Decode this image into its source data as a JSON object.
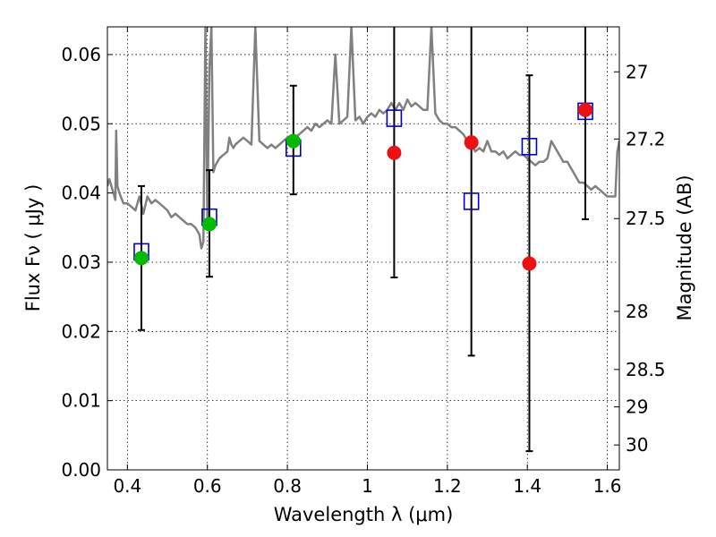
{
  "chart_data": {
    "type": "scatter",
    "xlabel": "Wavelength  λ (μm)",
    "ylabel_left": "Flux  Fν  ( μJy )",
    "ylabel_right": "Magnitude (AB)",
    "xlim": [
      0.35,
      1.63
    ],
    "ylim": [
      0.0,
      0.064
    ],
    "grid": true,
    "x_ticks": [
      0.4,
      0.6,
      0.8,
      1.0,
      1.2,
      1.4,
      1.6
    ],
    "x_tick_labels": [
      "0.4",
      "0.6",
      "0.8",
      "1",
      "1.2",
      "1.4",
      "1.6"
    ],
    "y_ticks": [
      0.0,
      0.01,
      0.02,
      0.03,
      0.04,
      0.05,
      0.06
    ],
    "y_tick_labels": [
      "0.00",
      "0.01",
      "0.02",
      "0.03",
      "0.04",
      "0.05",
      "0.06"
    ],
    "right_ticks": [
      {
        "label": "27",
        "flux": 0.0575
      },
      {
        "label": "27.2",
        "flux": 0.0478
      },
      {
        "label": "27.5",
        "flux": 0.0363
      },
      {
        "label": "28",
        "flux": 0.0229
      },
      {
        "label": "28.5",
        "flux": 0.0145
      },
      {
        "label": "29",
        "flux": 0.0091
      },
      {
        "label": "30",
        "flux": 0.0036
      }
    ],
    "colors": {
      "sed": "#808080",
      "model_box": "#0000cc",
      "green_points": "#00bb00",
      "red_points": "#ee1111",
      "errorbar": "#000000"
    },
    "series": [
      {
        "kind": "sed_line",
        "x": [
          0.35,
          0.355,
          0.36,
          0.365,
          0.37,
          0.372,
          0.375,
          0.38,
          0.39,
          0.4,
          0.41,
          0.42,
          0.43,
          0.44,
          0.45,
          0.46,
          0.47,
          0.48,
          0.49,
          0.5,
          0.51,
          0.52,
          0.53,
          0.54,
          0.55,
          0.56,
          0.57,
          0.58,
          0.585,
          0.59,
          0.595,
          0.6,
          0.605,
          0.61,
          0.615,
          0.62,
          0.63,
          0.64,
          0.65,
          0.655,
          0.66,
          0.665,
          0.67,
          0.68,
          0.69,
          0.7,
          0.71,
          0.72,
          0.73,
          0.74,
          0.75,
          0.76,
          0.77,
          0.78,
          0.79,
          0.8,
          0.81,
          0.82,
          0.83,
          0.84,
          0.85,
          0.86,
          0.87,
          0.88,
          0.89,
          0.9,
          0.91,
          0.92,
          0.93,
          0.94,
          0.95,
          0.96,
          0.97,
          0.98,
          0.99,
          1.0,
          1.01,
          1.02,
          1.03,
          1.04,
          1.05,
          1.06,
          1.07,
          1.08,
          1.09,
          1.1,
          1.11,
          1.12,
          1.13,
          1.14,
          1.15,
          1.16,
          1.17,
          1.18,
          1.19,
          1.2,
          1.21,
          1.22,
          1.23,
          1.24,
          1.25,
          1.26,
          1.27,
          1.28,
          1.29,
          1.3,
          1.31,
          1.32,
          1.33,
          1.34,
          1.35,
          1.36,
          1.37,
          1.38,
          1.39,
          1.4,
          1.41,
          1.42,
          1.43,
          1.44,
          1.45,
          1.46,
          1.47,
          1.48,
          1.49,
          1.5,
          1.51,
          1.52,
          1.53,
          1.54,
          1.55,
          1.56,
          1.57,
          1.58,
          1.59,
          1.6,
          1.61,
          1.62,
          1.625,
          1.63
        ],
        "y": [
          0.041,
          0.042,
          0.041,
          0.04,
          0.039,
          0.049,
          0.041,
          0.04,
          0.0385,
          0.0385,
          0.038,
          0.0375,
          0.0395,
          0.037,
          0.0395,
          0.0385,
          0.039,
          0.0385,
          0.038,
          0.0375,
          0.0365,
          0.037,
          0.0365,
          0.036,
          0.0355,
          0.0355,
          0.035,
          0.034,
          0.032,
          0.033,
          0.064,
          0.036,
          0.058,
          0.064,
          0.043,
          0.044,
          0.045,
          0.0455,
          0.046,
          0.048,
          0.047,
          0.0465,
          0.047,
          0.0475,
          0.048,
          0.0475,
          0.047,
          0.064,
          0.0475,
          0.047,
          0.0465,
          0.047,
          0.0465,
          0.047,
          0.0475,
          0.048,
          0.048,
          0.048,
          0.0485,
          0.049,
          0.0495,
          0.049,
          0.05,
          0.0495,
          0.05,
          0.0505,
          0.05,
          0.06,
          0.05,
          0.0505,
          0.051,
          0.064,
          0.0505,
          0.051,
          0.05,
          0.051,
          0.0515,
          0.051,
          0.052,
          0.0515,
          0.052,
          0.053,
          0.052,
          0.053,
          0.052,
          0.0535,
          0.0525,
          0.053,
          0.0525,
          0.052,
          0.052,
          0.064,
          0.0515,
          0.0505,
          0.05,
          0.05,
          0.0495,
          0.0495,
          0.049,
          0.0485,
          0.0475,
          0.047,
          0.046,
          0.0465,
          0.046,
          0.0475,
          0.046,
          0.046,
          0.0455,
          0.046,
          0.045,
          0.0455,
          0.046,
          0.0455,
          0.0455,
          0.045,
          0.0445,
          0.044,
          0.0445,
          0.0445,
          0.045,
          0.0475,
          0.0465,
          0.0455,
          0.0445,
          0.0445,
          0.0435,
          0.0425,
          0.0415,
          0.0415,
          0.041,
          0.0405,
          0.041,
          0.0405,
          0.04,
          0.0395,
          0.0395,
          0.0395,
          0.046,
          0.0475
        ]
      },
      {
        "kind": "model_boxes",
        "x": [
          0.435,
          0.605,
          0.815,
          1.067,
          1.26,
          1.405,
          1.545
        ],
        "y": [
          0.0315,
          0.0365,
          0.0465,
          0.0508,
          0.0388,
          0.0467,
          0.0518
        ]
      },
      {
        "kind": "green_points",
        "x": [
          0.435,
          0.605,
          0.815
        ],
        "y": [
          0.0306,
          0.0355,
          0.0475
        ]
      },
      {
        "kind": "red_points",
        "x": [
          1.067,
          1.26,
          1.405,
          1.545
        ],
        "y": [
          0.0458,
          0.0473,
          0.0298,
          0.052
        ]
      },
      {
        "kind": "errorbars",
        "x": [
          0.435,
          0.605,
          0.815,
          1.067,
          1.26,
          1.405,
          1.545
        ],
        "y": [
          0.0306,
          0.0355,
          0.0475,
          0.0458,
          0.0473,
          0.0298,
          0.052
        ],
        "low": [
          0.0202,
          0.0279,
          0.0398,
          0.0278,
          0.0165,
          0.0027,
          0.0362
        ],
        "high": [
          0.041,
          0.0433,
          0.0555,
          0.064,
          0.064,
          0.057,
          0.064
        ]
      }
    ]
  }
}
